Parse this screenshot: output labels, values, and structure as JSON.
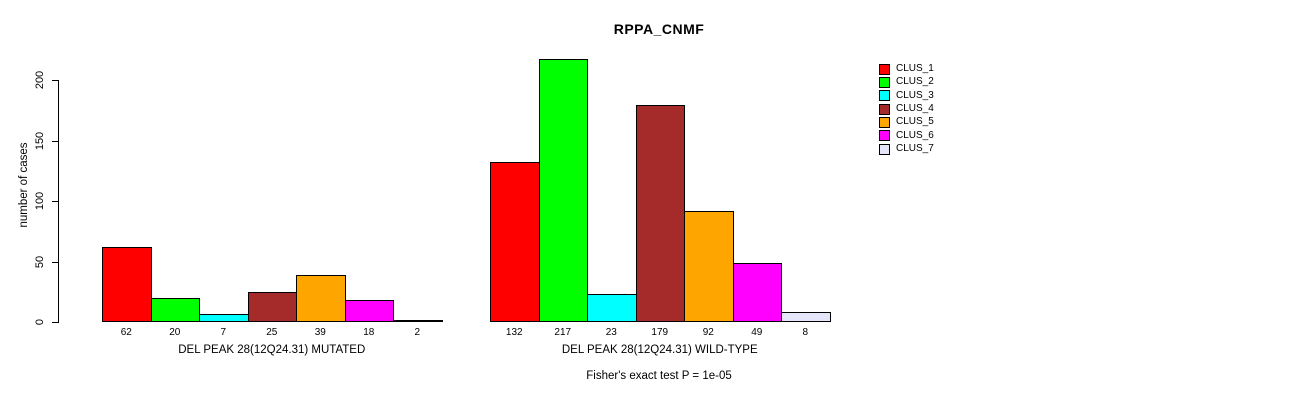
{
  "chart_data": {
    "type": "bar",
    "title": "RPPA_CNMF",
    "ylabel": "number of cases",
    "xlabel": "",
    "ylim": [
      0,
      225
    ],
    "yticks": [
      0,
      50,
      100,
      150,
      200
    ],
    "grid": false,
    "legend_position": "right",
    "categories": [
      "CLUS_1",
      "CLUS_2",
      "CLUS_3",
      "CLUS_4",
      "CLUS_5",
      "CLUS_6",
      "CLUS_7"
    ],
    "colors": [
      "#FF0000",
      "#00FF00",
      "#00FFFF",
      "#A52A2A",
      "#FFA500",
      "#FF00FF",
      "#E6E6FA"
    ],
    "groups": [
      {
        "label": "DEL PEAK 28(12Q24.31) MUTATED",
        "values": [
          62,
          20,
          7,
          25,
          39,
          18,
          2
        ]
      },
      {
        "label": "DEL PEAK 28(12Q24.31) WILD-TYPE",
        "values": [
          132,
          217,
          23,
          179,
          92,
          49,
          8
        ]
      }
    ],
    "annotation": "Fisher's exact test P = 1e-05"
  }
}
